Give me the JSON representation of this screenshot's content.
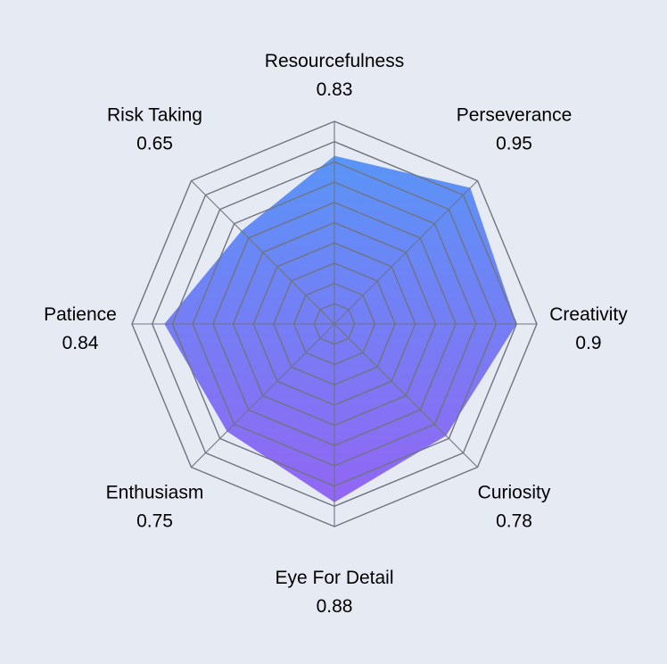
{
  "chart_data": {
    "type": "radar",
    "title": "",
    "categories": [
      "Resourcefulness",
      "Perseverance",
      "Creativity",
      "Curiosity",
      "Eye For Detail",
      "Enthusiasm",
      "Patience",
      "Risk Taking"
    ],
    "series": [
      {
        "values": [
          0.83,
          0.95,
          0.9,
          0.78,
          0.88,
          0.75,
          0.84,
          0.65
        ]
      }
    ],
    "value_labels": [
      "0.83",
      "0.95",
      "0.9",
      "0.78",
      "0.88",
      "0.75",
      "0.84",
      "0.65"
    ],
    "range": [
      0,
      1
    ],
    "grid_levels": 10,
    "grid_shape": "octagon",
    "legend": "none",
    "colors": {
      "background": "#e5eaf3",
      "grid": "#6f7480",
      "fill_top": "#4f8ef7",
      "fill_bottom": "#8c5cf3"
    }
  }
}
